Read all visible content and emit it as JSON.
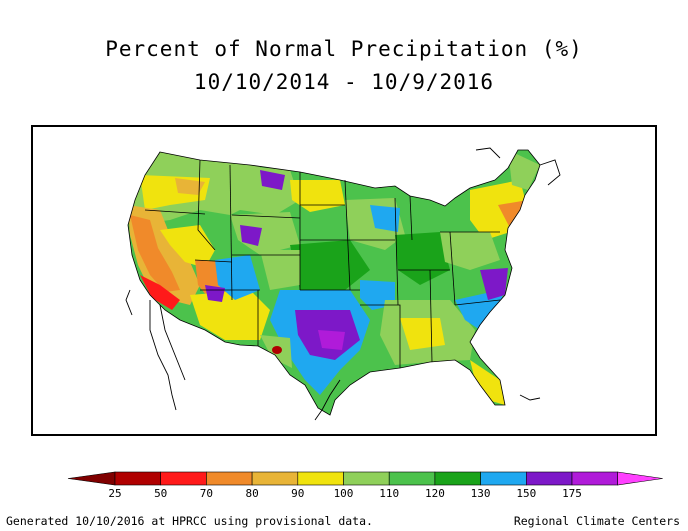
{
  "title_line1": "Percent of Normal Precipitation (%)",
  "title_line2": "10/10/2014 - 10/9/2016",
  "legend": {
    "bins": [
      {
        "label": "25",
        "color": "#b00000"
      },
      {
        "label": "50",
        "color": "#ff1a1a"
      },
      {
        "label": "70",
        "color": "#f08a2a"
      },
      {
        "label": "80",
        "color": "#e8b437"
      },
      {
        "label": "90",
        "color": "#f0e30e"
      },
      {
        "label": "100",
        "color": "#8fd05a"
      },
      {
        "label": "110",
        "color": "#4cc24c"
      },
      {
        "label": "120",
        "color": "#1aa31a"
      },
      {
        "label": "130",
        "color": "#1fa8f0"
      },
      {
        "label": "150",
        "color": "#7d18c8"
      },
      {
        "label": "175",
        "color": "#b01bd9"
      }
    ],
    "low_arrow_color": "#800000",
    "high_arrow_color": "#ff40ff"
  },
  "footer": {
    "left": "Generated 10/10/2016 at HPRCC using provisional data.",
    "right": "Regional Climate Centers"
  }
}
